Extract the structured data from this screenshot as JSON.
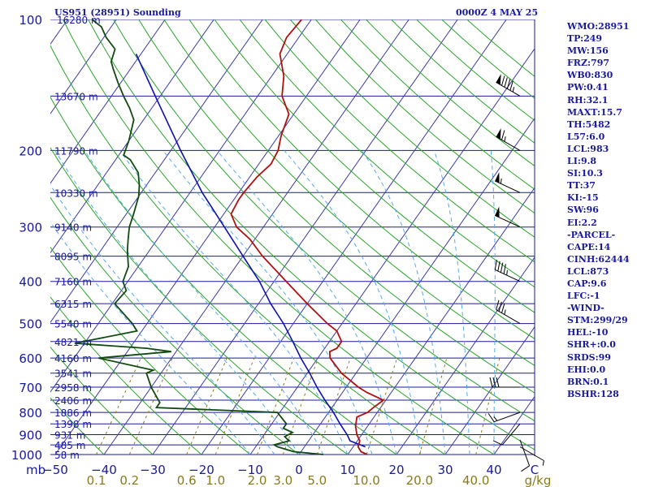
{
  "header": {
    "station": "US951 (28951) Sounding",
    "time": "0000Z  4 MAY 25"
  },
  "indices": [
    "WMO:28951",
    "TP:249",
    "MW:156",
    "FRZ:797",
    "WB0:830",
    "PW:0.41",
    "RH:32.1",
    "MAXT:15.7",
    "TH:5482",
    "L57:6.0",
    "LCL:983",
    "LI:9.8",
    "SI:10.3",
    "TT:37",
    "KI:-15",
    "SW:96",
    "EI:2.2",
    "-PARCEL-",
    "CAPE:14",
    "CINH:62444",
    "LCL:873",
    "CAP:9.6",
    "LFC:-1",
    "-WIND-",
    "STM:299/29",
    "HEL:-10",
    "SHR+:0.0",
    "SRDS:99",
    "EHI:0.0",
    "BRN:0.1",
    "BSHR:128"
  ],
  "colors": {
    "isobar": "#1a1a9c",
    "isotherm": "#3a3aa8",
    "dry_adiabat": "#2aa52a",
    "moist_adiabat": "#55aaee",
    "mixing_ratio": "#8a7a1a",
    "temperature": "#b01010",
    "dewpoint": "#104a10",
    "parcel": "#1010b0",
    "wind_barb": "#000000"
  },
  "chart_data": {
    "type": "skew-t",
    "pressure_unit_label": "mb",
    "pressure_levels": [
      100,
      200,
      300,
      400,
      500,
      600,
      700,
      800,
      900,
      1000
    ],
    "height_levels": [
      {
        "p": 150,
        "label": "13670 m"
      },
      {
        "p": 200,
        "label": "11790 m"
      },
      {
        "p": 250,
        "label": "10330 m"
      },
      {
        "p": 300,
        "label": "9140 m"
      },
      {
        "p": 350,
        "label": "8095 m"
      },
      {
        "p": 400,
        "label": "7160 m"
      },
      {
        "p": 450,
        "label": "6315 m"
      },
      {
        "p": 500,
        "label": "5540 m"
      },
      {
        "p": 550,
        "label": "4821 m"
      },
      {
        "p": 600,
        "label": "4160 m"
      },
      {
        "p": 650,
        "label": "3541 m"
      },
      {
        "p": 700,
        "label": "2958 m"
      },
      {
        "p": 750,
        "label": "2406 m"
      },
      {
        "p": 800,
        "label": "1886 m"
      },
      {
        "p": 850,
        "label": "1398 m"
      },
      {
        "p": 900,
        "label": "931 m"
      },
      {
        "p": 950,
        "label": "485 m"
      },
      {
        "p": 1000,
        "label": "58 m"
      }
    ],
    "top_height_label": "16280 m",
    "temperature_ticks": [
      -50,
      -40,
      -30,
      -20,
      -10,
      0,
      10,
      20,
      30,
      40
    ],
    "temperature_tick_labels": [
      "−50",
      "−40",
      "−30",
      "−20",
      "−10",
      "0",
      "10",
      "20",
      "30",
      "40"
    ],
    "temperature_unit_label": "C",
    "mixing_ratio_labels": [
      "0.1",
      "0.2",
      "0.6",
      "1.0",
      "2.0",
      "3.0",
      "5.0",
      "10.0",
      "20.0",
      "40.0"
    ],
    "mixing_ratio_unit_label": "g/kg",
    "temperature_profile": [
      [
        1000,
        14.0
      ],
      [
        985,
        12.3
      ],
      [
        960,
        11.0
      ],
      [
        930,
        10.5
      ],
      [
        900,
        9.0
      ],
      [
        860,
        7.5
      ],
      [
        820,
        6.5
      ],
      [
        800,
        8.0
      ],
      [
        780,
        8.5
      ],
      [
        750,
        9.5
      ],
      [
        720,
        5.0
      ],
      [
        700,
        2.5
      ],
      [
        650,
        -3.0
      ],
      [
        600,
        -7.5
      ],
      [
        580,
        -8.5
      ],
      [
        570,
        -7.5
      ],
      [
        550,
        -7.5
      ],
      [
        520,
        -10.0
      ],
      [
        500,
        -13.0
      ],
      [
        450,
        -20.0
      ],
      [
        400,
        -27.5
      ],
      [
        350,
        -36.0
      ],
      [
        320,
        -41.0
      ],
      [
        300,
        -45.5
      ],
      [
        280,
        -48.5
      ],
      [
        260,
        -49.0
      ],
      [
        250,
        -49.0
      ],
      [
        230,
        -48.5
      ],
      [
        215,
        -47.5
      ],
      [
        200,
        -48.0
      ],
      [
        185,
        -49.5
      ],
      [
        165,
        -51.0
      ],
      [
        150,
        -55.0
      ],
      [
        135,
        -57.5
      ],
      [
        120,
        -61.5
      ],
      [
        110,
        -62.5
      ],
      [
        100,
        -62.0
      ]
    ],
    "dewpoint_profile": [
      [
        1000,
        5.0
      ],
      [
        985,
        -1.5
      ],
      [
        960,
        -5.5
      ],
      [
        950,
        -6.5
      ],
      [
        930,
        -4.0
      ],
      [
        910,
        -5.5
      ],
      [
        890,
        -4.5
      ],
      [
        870,
        -7.0
      ],
      [
        850,
        -7.0
      ],
      [
        800,
        -10.5
      ],
      [
        780,
        -36.0
      ],
      [
        760,
        -36.0
      ],
      [
        700,
        -40.0
      ],
      [
        650,
        -43.0
      ],
      [
        640,
        -42.0
      ],
      [
        600,
        -55.0
      ],
      [
        580,
        -41.0
      ],
      [
        570,
        -46.5
      ],
      [
        555,
        -62.0
      ],
      [
        520,
        -51.0
      ],
      [
        500,
        -53.0
      ],
      [
        450,
        -59.5
      ],
      [
        420,
        -59.0
      ],
      [
        400,
        -61.0
      ],
      [
        370,
        -62.0
      ],
      [
        340,
        -64.5
      ],
      [
        320,
        -66.0
      ],
      [
        300,
        -67.5
      ],
      [
        280,
        -68.5
      ],
      [
        255,
        -70.0
      ],
      [
        240,
        -71.5
      ],
      [
        225,
        -73.5
      ],
      [
        210,
        -77.0
      ],
      [
        205,
        -79.0
      ],
      [
        190,
        -80.0
      ],
      [
        170,
        -82.0
      ],
      [
        160,
        -84.5
      ],
      [
        150,
        -87.5
      ],
      [
        140,
        -90.5
      ],
      [
        130,
        -93.5
      ],
      [
        125,
        -95.0
      ],
      [
        117,
        -96.0
      ],
      [
        110,
        -99.5
      ],
      [
        104,
        -102.0
      ],
      [
        100,
        -105.0
      ]
    ],
    "parcel_path": [
      [
        960,
        12.5
      ],
      [
        930,
        8.5
      ],
      [
        900,
        7.0
      ],
      [
        850,
        4.0
      ],
      [
        800,
        1.0
      ],
      [
        750,
        -2.5
      ],
      [
        700,
        -6.0
      ],
      [
        650,
        -9.5
      ],
      [
        600,
        -13.5
      ],
      [
        550,
        -17.5
      ],
      [
        500,
        -22.0
      ],
      [
        450,
        -27.5
      ],
      [
        400,
        -33.0
      ],
      [
        350,
        -40.0
      ],
      [
        300,
        -48.0
      ],
      [
        250,
        -57.5
      ],
      [
        200,
        -68.0
      ],
      [
        150,
        -81.0
      ],
      [
        120,
        -91.0
      ]
    ],
    "wind_barbs": [
      {
        "p": 150,
        "dir": 300,
        "spd": 95
      },
      {
        "p": 200,
        "dir": 300,
        "spd": 65
      },
      {
        "p": 250,
        "dir": 295,
        "spd": 55
      },
      {
        "p": 300,
        "dir": 295,
        "spd": 50
      },
      {
        "p": 400,
        "dir": 295,
        "spd": 45
      },
      {
        "p": 500,
        "dir": 300,
        "spd": 35
      },
      {
        "p": 700,
        "dir": 270,
        "spd": 30
      },
      {
        "p": 800,
        "dir": 250,
        "spd": 15
      },
      {
        "p": 850,
        "dir": 220,
        "spd": 10
      },
      {
        "p": 925,
        "dir": 160,
        "spd": 10
      },
      {
        "p": 960,
        "dir": 120,
        "spd": 5
      }
    ],
    "xlim": [
      -50,
      50
    ],
    "plim": [
      1000,
      100
    ]
  }
}
